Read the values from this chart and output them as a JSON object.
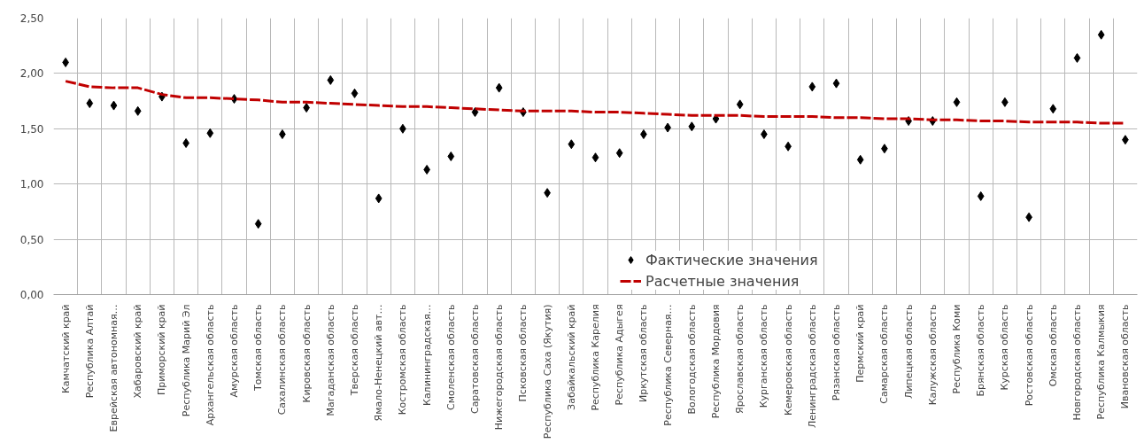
{
  "chart_data": {
    "type": "scatter",
    "categories": [
      "Камчатский край",
      "Республика Алтай",
      "Еврейская автономная…",
      "Хабаровский край",
      "Приморский край",
      "Республика Марий Эл",
      "Архангельская область",
      "Амурская область",
      "Томская область",
      "Сахалинская область",
      "Кировская область",
      "Магаданская область",
      "Тверская область",
      "Ямало-Ненецкий авт…",
      "Костромская область",
      "Калининградская…",
      "Смоленская область",
      "Саратовская область",
      "Нижегородская область",
      "Псковская область",
      "Республика Саха (Якутия)",
      "Забайкальский край",
      "Республика Карелия",
      "Республика Адыгея",
      "Иркутская область",
      "Республика Северная…",
      "Вологодская область",
      "Республика Мордовия",
      "Ярославская область",
      "Курганская область",
      "Кемеровская область",
      "Ленинградская область",
      "Рязанская область",
      "Пермский край",
      "Самарская область",
      "Липецкая область",
      "Калужская область",
      "Республика Коми",
      "Брянская область",
      "Курская область",
      "Ростовская область",
      "Омская область",
      "Новгородская область",
      "Республика Калмыкия",
      "Ивановская область"
    ],
    "series": [
      {
        "name": "Фактические значения",
        "marker": "diamond",
        "color": "#000000",
        "values": [
          2.1,
          1.73,
          1.71,
          1.66,
          1.79,
          1.37,
          1.46,
          1.77,
          0.64,
          1.45,
          1.69,
          1.94,
          1.82,
          0.87,
          1.5,
          1.13,
          1.25,
          1.65,
          1.87,
          1.65,
          0.92,
          1.36,
          1.24,
          1.28,
          1.45,
          1.51,
          1.52,
          1.59,
          1.72,
          1.45,
          1.34,
          1.88,
          1.91,
          1.22,
          1.32,
          1.57,
          1.57,
          1.74,
          0.89,
          1.74,
          0.7,
          1.68,
          2.14,
          2.35,
          1.4
        ]
      },
      {
        "name": "Расчетные значения",
        "type": "line",
        "line_style": "dashed",
        "marker": "none",
        "color": "#c00000",
        "values": [
          1.93,
          1.88,
          1.87,
          1.87,
          1.81,
          1.78,
          1.78,
          1.77,
          1.76,
          1.74,
          1.74,
          1.73,
          1.72,
          1.71,
          1.7,
          1.7,
          1.69,
          1.68,
          1.67,
          1.66,
          1.66,
          1.66,
          1.65,
          1.65,
          1.64,
          1.63,
          1.62,
          1.62,
          1.62,
          1.61,
          1.61,
          1.61,
          1.6,
          1.6,
          1.59,
          1.59,
          1.58,
          1.58,
          1.57,
          1.57,
          1.56,
          1.56,
          1.56,
          1.55,
          1.55
        ]
      }
    ],
    "ylim": [
      0,
      2.5
    ],
    "yticks": [
      {
        "value": 0,
        "label": "0,00"
      },
      {
        "value": 0.5,
        "label": "0,50"
      },
      {
        "value": 1,
        "label": "1,00"
      },
      {
        "value": 1.5,
        "label": "1,50"
      },
      {
        "value": 2,
        "label": "2,00"
      },
      {
        "value": 2.5,
        "label": "2,50"
      }
    ],
    "grid": true,
    "legend": "bottom right"
  }
}
